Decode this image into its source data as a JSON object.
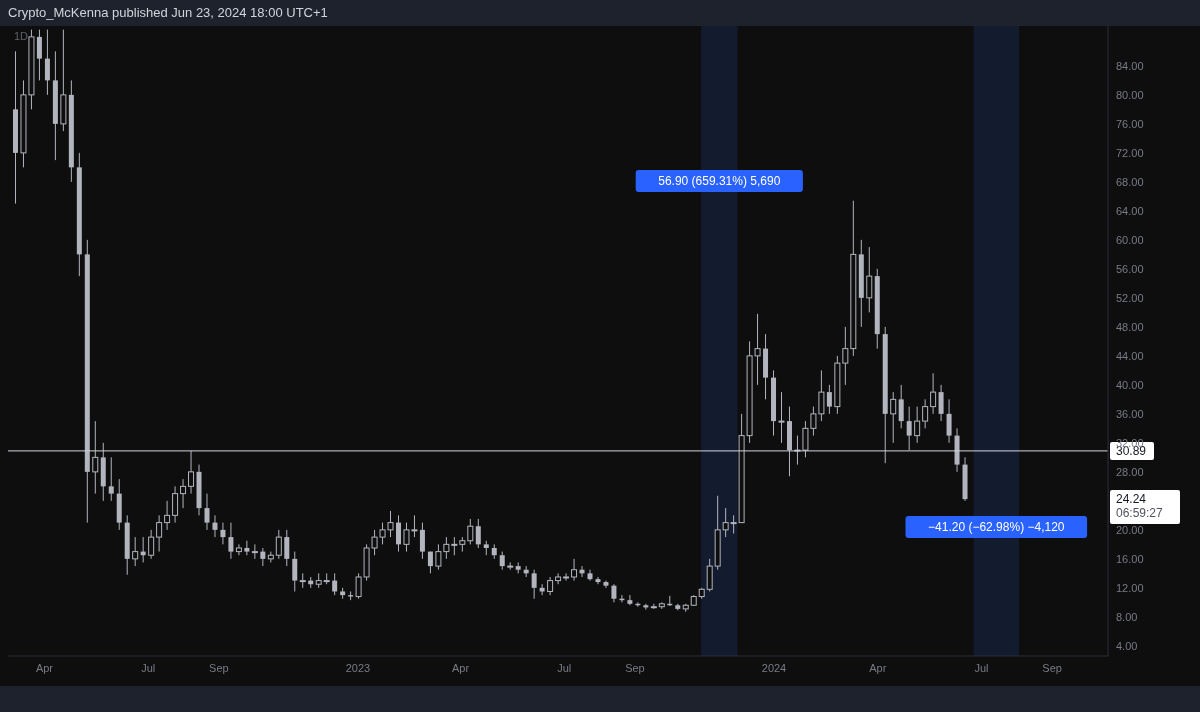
{
  "chart_data": {
    "type": "candlestick",
    "title": "Crypto_McKenna published Jun 23, 2024 18:00 UTC+1",
    "subtitle": "1D",
    "x": [
      "2022-03-07",
      "2022-03-14",
      "2022-03-21",
      "2022-03-28",
      "2022-04-04",
      "2022-04-11",
      "2022-04-18",
      "2022-04-25",
      "2022-05-02",
      "2022-05-09",
      "2022-05-16",
      "2022-05-23",
      "2022-05-30",
      "2022-06-06",
      "2022-06-13",
      "2022-06-20",
      "2022-06-27",
      "2022-07-04",
      "2022-07-11",
      "2022-07-18",
      "2022-07-25",
      "2022-08-01",
      "2022-08-08",
      "2022-08-15",
      "2022-08-22",
      "2022-08-29",
      "2022-09-05",
      "2022-09-12",
      "2022-09-19",
      "2022-09-26",
      "2022-10-03",
      "2022-10-10",
      "2022-10-17",
      "2022-10-24",
      "2022-10-31",
      "2022-11-07",
      "2022-11-14",
      "2022-11-21",
      "2022-11-28",
      "2022-12-05",
      "2022-12-12",
      "2022-12-19",
      "2022-12-26",
      "2023-01-02",
      "2023-01-09",
      "2023-01-16",
      "2023-01-23",
      "2023-01-30",
      "2023-02-06",
      "2023-02-13",
      "2023-02-20",
      "2023-02-27",
      "2023-03-06",
      "2023-03-13",
      "2023-03-20",
      "2023-03-27",
      "2023-04-03",
      "2023-04-10",
      "2023-04-17",
      "2023-04-24",
      "2023-05-01",
      "2023-05-08",
      "2023-05-15",
      "2023-05-22",
      "2023-05-29",
      "2023-06-05",
      "2023-06-12",
      "2023-06-19",
      "2023-06-26",
      "2023-07-03",
      "2023-07-10",
      "2023-07-17",
      "2023-07-24",
      "2023-07-31",
      "2023-08-07",
      "2023-08-14",
      "2023-08-21",
      "2023-08-28",
      "2023-09-04",
      "2023-09-11",
      "2023-09-18",
      "2023-09-25",
      "2023-10-02",
      "2023-10-09",
      "2023-10-16",
      "2023-10-23",
      "2023-10-30",
      "2023-11-06",
      "2023-11-13",
      "2023-11-20",
      "2023-11-27",
      "2023-12-04",
      "2023-12-11",
      "2023-12-18",
      "2023-12-25",
      "2024-01-01",
      "2024-01-08",
      "2024-01-15",
      "2024-01-22",
      "2024-01-29",
      "2024-02-05",
      "2024-02-12",
      "2024-02-19",
      "2024-02-26",
      "2024-03-04",
      "2024-03-11",
      "2024-03-18",
      "2024-03-25",
      "2024-04-01",
      "2024-04-08",
      "2024-04-15",
      "2024-04-22",
      "2024-04-29",
      "2024-05-06",
      "2024-05-13",
      "2024-05-20",
      "2024-05-27",
      "2024-06-03",
      "2024-06-10",
      "2024-06-17"
    ],
    "series": [
      {
        "color": "#b2b5be",
        "ohlc": [
          [
            78,
            86,
            65,
            72
          ],
          [
            72,
            82,
            70,
            80
          ],
          [
            80,
            89,
            78,
            88
          ],
          [
            88,
            89,
            82,
            85
          ],
          [
            85,
            89,
            80,
            82
          ],
          [
            82,
            86,
            71,
            76
          ],
          [
            76,
            89,
            75,
            80
          ],
          [
            80,
            82,
            68,
            70
          ],
          [
            70,
            72,
            55,
            58
          ],
          [
            58,
            60,
            21,
            28
          ],
          [
            28,
            35,
            25,
            30
          ],
          [
            30,
            32,
            24,
            26
          ],
          [
            26,
            30,
            24,
            25
          ],
          [
            25,
            27,
            20,
            21
          ],
          [
            21,
            22,
            13.8,
            16
          ],
          [
            16,
            19,
            15,
            17
          ],
          [
            17,
            19,
            15.5,
            16.5
          ],
          [
            16.5,
            20,
            16,
            19
          ],
          [
            19,
            22,
            17,
            21
          ],
          [
            21,
            24,
            20,
            22
          ],
          [
            22,
            26,
            21,
            25
          ],
          [
            25,
            27,
            23,
            26
          ],
          [
            26,
            30.9,
            25,
            28
          ],
          [
            28,
            29,
            22,
            23
          ],
          [
            23,
            25,
            20,
            21
          ],
          [
            21,
            22,
            19,
            20
          ],
          [
            20,
            21,
            18,
            19
          ],
          [
            19,
            21,
            16,
            17
          ],
          [
            17,
            18,
            16.5,
            17.5
          ],
          [
            17.5,
            18.5,
            16.5,
            17
          ],
          [
            17,
            18,
            16,
            17
          ],
          [
            17,
            17.5,
            15,
            16
          ],
          [
            16,
            17,
            15.5,
            16.5
          ],
          [
            16.5,
            20,
            16,
            19
          ],
          [
            19,
            20,
            15,
            16
          ],
          [
            16,
            17,
            11.5,
            13
          ],
          [
            13,
            14,
            12,
            13
          ],
          [
            13,
            13.5,
            12,
            12.5
          ],
          [
            12.5,
            14,
            12,
            13
          ],
          [
            13,
            14,
            12.5,
            13
          ],
          [
            13,
            14,
            11,
            11.5
          ],
          [
            11.5,
            12,
            10.5,
            11
          ],
          [
            11,
            11.5,
            10.3,
            10.8
          ],
          [
            10.8,
            14,
            10.5,
            13.5
          ],
          [
            13.5,
            18,
            13,
            17.5
          ],
          [
            17.5,
            20,
            16.5,
            19
          ],
          [
            19,
            21,
            18,
            20
          ],
          [
            20,
            22.6,
            19,
            21
          ],
          [
            21,
            22,
            17,
            18
          ],
          [
            18,
            21,
            17,
            20
          ],
          [
            20,
            22,
            19,
            20
          ],
          [
            20,
            21,
            16,
            17
          ],
          [
            17,
            17,
            14,
            15
          ],
          [
            15,
            18,
            14.5,
            17
          ],
          [
            17,
            19,
            16,
            18
          ],
          [
            18,
            19,
            16.5,
            18
          ],
          [
            18,
            19,
            17,
            18.5
          ],
          [
            18.5,
            21.5,
            18,
            20.5
          ],
          [
            20.5,
            21.5,
            17.5,
            18
          ],
          [
            18,
            18.5,
            16.5,
            17.5
          ],
          [
            17.5,
            18,
            16,
            16.5
          ],
          [
            16.5,
            17,
            14.5,
            15
          ],
          [
            15,
            15.5,
            14.5,
            15
          ],
          [
            15,
            15.5,
            14,
            14.5
          ],
          [
            14.5,
            15,
            13.5,
            14
          ],
          [
            14,
            14.5,
            10.5,
            12
          ],
          [
            12,
            12.5,
            11,
            11.5
          ],
          [
            11.5,
            13.5,
            11,
            13
          ],
          [
            13,
            14,
            12.5,
            13.5
          ],
          [
            13.5,
            14,
            13,
            13.5
          ],
          [
            13.5,
            16,
            13,
            14.5
          ],
          [
            14.5,
            15,
            13.5,
            14
          ],
          [
            14,
            14.5,
            13,
            13.2
          ],
          [
            13.2,
            13.5,
            12.5,
            12.8
          ],
          [
            12.8,
            13,
            12,
            12.3
          ],
          [
            12.3,
            12.5,
            10,
            10.5
          ],
          [
            10.5,
            11,
            10,
            10.3
          ],
          [
            10.3,
            11,
            9.6,
            9.8
          ],
          [
            9.8,
            10,
            9.4,
            9.6
          ],
          [
            9.6,
            9.8,
            9,
            9.3
          ],
          [
            9.3,
            9.8,
            9.1,
            9.4
          ],
          [
            9.4,
            10,
            9.1,
            9.8
          ],
          [
            9.8,
            10.9,
            9.5,
            9.6
          ],
          [
            9.6,
            9.8,
            8.9,
            9.1
          ],
          [
            9.1,
            9.8,
            8.7,
            9.6
          ],
          [
            9.6,
            11,
            9.5,
            10.8
          ],
          [
            10.8,
            12,
            10.5,
            11.8
          ],
          [
            11.8,
            16,
            11.5,
            15
          ],
          [
            15,
            24.7,
            14.5,
            20
          ],
          [
            20,
            23,
            19,
            21
          ],
          [
            21,
            22,
            19.5,
            21
          ],
          [
            21,
            36,
            21,
            33
          ],
          [
            33,
            46,
            32,
            44
          ],
          [
            44,
            49.8,
            40,
            45
          ],
          [
            45,
            47,
            38,
            41
          ],
          [
            41,
            42,
            33,
            35
          ],
          [
            35,
            39,
            32,
            35
          ],
          [
            35,
            37,
            27.4,
            31
          ],
          [
            31,
            33,
            29,
            31
          ],
          [
            31,
            35,
            30,
            34
          ],
          [
            34,
            37,
            33,
            36
          ],
          [
            36,
            42,
            35,
            39
          ],
          [
            39,
            40,
            36,
            37
          ],
          [
            37,
            44,
            36,
            43
          ],
          [
            43,
            48,
            40,
            45
          ],
          [
            45,
            65.4,
            44,
            58
          ],
          [
            58,
            60,
            48,
            52
          ],
          [
            52,
            59,
            50,
            55
          ],
          [
            55,
            56,
            45,
            47
          ],
          [
            47,
            48,
            29.2,
            36
          ],
          [
            36,
            39,
            32,
            38
          ],
          [
            38,
            40,
            34,
            35
          ],
          [
            35,
            37,
            31,
            33
          ],
          [
            33,
            37,
            32,
            35
          ],
          [
            35,
            38,
            34,
            37
          ],
          [
            37,
            41.6,
            36,
            39
          ],
          [
            39,
            40,
            35,
            36
          ],
          [
            36,
            38,
            32,
            33
          ],
          [
            33,
            34,
            28,
            29
          ],
          [
            29,
            30,
            24,
            24.24
          ]
        ]
      }
    ],
    "xlim": [
      "2022-02-28",
      "2024-10-20"
    ],
    "xticks": [
      {
        "value": "2022-04-01",
        "label": "Apr"
      },
      {
        "value": "2022-07-01",
        "label": "Jul"
      },
      {
        "value": "2022-09-01",
        "label": "Sep"
      },
      {
        "value": "2023-01-01",
        "label": "2023"
      },
      {
        "value": "2023-04-01",
        "label": "Apr"
      },
      {
        "value": "2023-07-01",
        "label": "Jul"
      },
      {
        "value": "2023-09-01",
        "label": "Sep"
      },
      {
        "value": "2024-01-01",
        "label": "2024"
      },
      {
        "value": "2024-04-01",
        "label": "Apr"
      },
      {
        "value": "2024-07-01",
        "label": "Jul"
      },
      {
        "value": "2024-09-01",
        "label": "Sep"
      }
    ],
    "ylim": [
      2.6,
      89.5
    ],
    "yticks": [
      {
        "value": 4,
        "label": "4.00"
      },
      {
        "value": 8,
        "label": "8.00"
      },
      {
        "value": 12,
        "label": "12.00"
      },
      {
        "value": 16,
        "label": "16.00"
      },
      {
        "value": 20,
        "label": "20.00"
      },
      {
        "value": 28,
        "label": "28.00"
      },
      {
        "value": 32,
        "label": "32.00"
      },
      {
        "value": 36,
        "label": "36.00"
      },
      {
        "value": 40,
        "label": "40.00"
      },
      {
        "value": 44,
        "label": "44.00"
      },
      {
        "value": 48,
        "label": "48.00"
      },
      {
        "value": 52,
        "label": "52.00"
      },
      {
        "value": 56,
        "label": "56.00"
      },
      {
        "value": 60,
        "label": "60.00"
      },
      {
        "value": 64,
        "label": "64.00"
      },
      {
        "value": 68,
        "label": "68.00"
      },
      {
        "value": 72,
        "label": "72.00"
      },
      {
        "value": 76,
        "label": "76.00"
      },
      {
        "value": 80,
        "label": "80.00"
      },
      {
        "value": 84,
        "label": "84.00"
      }
    ],
    "ref_lines": [
      {
        "axis": "y",
        "value": 30.89,
        "label": "30.89",
        "color": "#d1d4dc",
        "line_style": "solid"
      }
    ],
    "bands": [
      {
        "axis": "x",
        "from": "2023-10-29",
        "to": "2023-11-30",
        "color": "#131b2e",
        "label": "56.90 (659.31%) 5,690"
      },
      {
        "axis": "x",
        "from": "2024-06-24",
        "to": "2024-08-03",
        "color": "#131b2e",
        "label": "−41.20 (−62.98%) −4,120"
      }
    ],
    "annotations": [
      "24.24",
      "06:59:27"
    ],
    "grid": false,
    "legend": false
  }
}
